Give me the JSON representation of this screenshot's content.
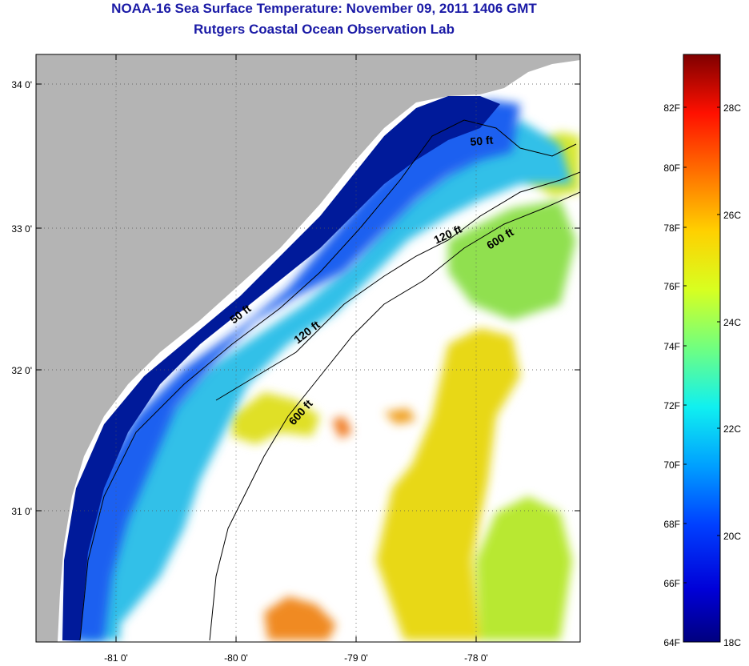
{
  "title": {
    "line1": "NOAA-16 Sea Surface Temperature:  November 09, 2011 1406 GMT",
    "line2": "Rutgers Coastal Ocean Observation Lab"
  },
  "map": {
    "lat_ticks": [
      "34 0'",
      "33 0'",
      "32 0'",
      "31 0'"
    ],
    "lon_ticks": [
      "-81 0'",
      "-80 0'",
      "-79 0'",
      "-78 0'"
    ],
    "contours": [
      {
        "label": "50 ft"
      },
      {
        "label": "120 ft"
      },
      {
        "label": "600 ft"
      },
      {
        "label": "50 ft"
      },
      {
        "label": "120 ft"
      },
      {
        "label": "600 ft"
      }
    ]
  },
  "colorbar": {
    "fahrenheit": [
      "82F",
      "80F",
      "78F",
      "76F",
      "74F",
      "72F",
      "70F",
      "68F",
      "66F",
      "64F"
    ],
    "celsius": [
      "28C",
      "26C",
      "24C",
      "22C",
      "20C",
      "18C"
    ],
    "colors": [
      "#00007f",
      "#0000d8",
      "#0040ff",
      "#00a0ff",
      "#10f0f0",
      "#70ff80",
      "#d8ff20",
      "#ffd000",
      "#ff7000",
      "#ff1000",
      "#b00000",
      "#7f0000"
    ]
  },
  "colors": {
    "land": "#b4b4b4",
    "coastal_dark": "#001aa0",
    "coastal_mid": "#1a50e8",
    "shelf_cyan": "#30c8e0",
    "warm_yellow": "#e6e020",
    "warm_orange": "#f09020"
  }
}
